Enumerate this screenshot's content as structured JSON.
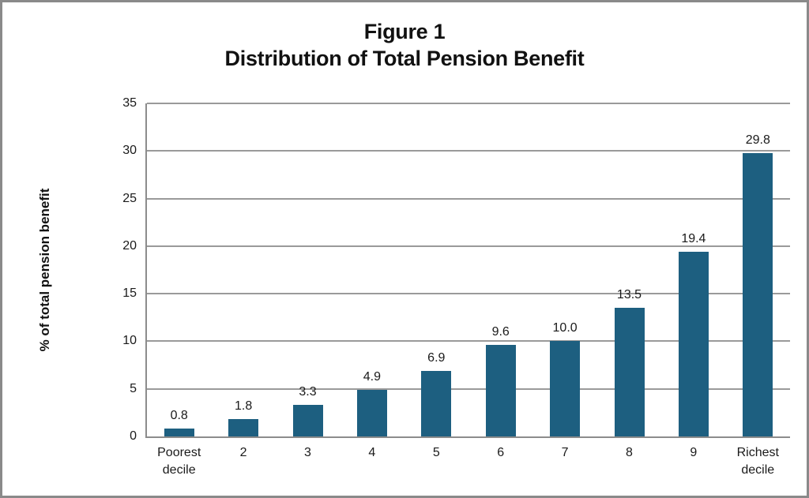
{
  "chart_data": {
    "type": "bar",
    "title_lines": [
      "Figure 1",
      "Distribution of Total Pension Benefit"
    ],
    "categories": [
      "Poorest decile",
      "2",
      "3",
      "4",
      "5",
      "6",
      "7",
      "8",
      "9",
      "Richest decile"
    ],
    "values": [
      0.8,
      1.8,
      3.3,
      4.9,
      6.9,
      9.6,
      10.0,
      13.5,
      19.4,
      29.8
    ],
    "value_labels": [
      "0.8",
      "1.8",
      "3.3",
      "4.9",
      "6.9",
      "9.6",
      "10.0",
      "13.5",
      "19.4",
      "29.8"
    ],
    "xlabel": "",
    "ylabel": "% of total pension benefit",
    "ylim": [
      0,
      35
    ],
    "ytick_step": 5,
    "ytick_labels": [
      "0",
      "5",
      "10",
      "15",
      "20",
      "25",
      "30",
      "35"
    ],
    "grid": "horizontal",
    "legend": "none",
    "colors": {
      "bar": "#1d5f80",
      "gridline": "#9a9a9a",
      "axis": "#8c8c8c",
      "frame_border": "#8a8a8a",
      "text": "#1a1a1a"
    }
  }
}
